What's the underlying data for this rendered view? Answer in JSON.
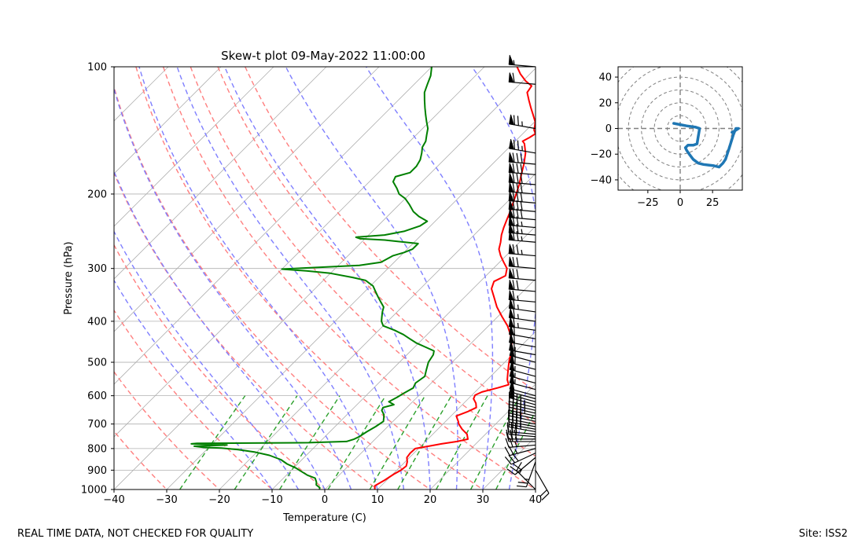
{
  "chart_data": [
    {
      "type": "line",
      "subtype": "skew-t log-p diagram",
      "title": "Skew-t plot 09-May-2022 11:00:00",
      "xlabel": "Temperature (C)",
      "ylabel": "Pressure (hPa)",
      "xlim": [
        -40,
        40
      ],
      "ylim": [
        1000,
        100
      ],
      "y_scale": "log",
      "x_ticks": [
        -40,
        -30,
        -20,
        -10,
        0,
        10,
        20,
        30,
        40
      ],
      "y_ticks": [
        100,
        200,
        300,
        400,
        500,
        600,
        700,
        800,
        900,
        1000
      ],
      "grid": true,
      "skew_isotherm_interval_C": 10,
      "dry_adiabats_C": [
        -30,
        -20,
        -10,
        0,
        10,
        20,
        30,
        40,
        50,
        60,
        70
      ],
      "moist_adiabats_C": [
        -10,
        -5,
        0,
        5,
        10,
        15,
        20,
        25,
        30,
        35
      ],
      "mixing_ratio_lines": [
        0.0004,
        0.001,
        0.002,
        0.004,
        0.007,
        0.01,
        0.016,
        0.024,
        0.032
      ],
      "colors": {
        "temperature": "#ff0000",
        "dewpoint": "#008000",
        "dry_adiabat": "#ff7f7f",
        "moist_adiabat": "#7f7fff",
        "mixing_ratio": "#2ca02c",
        "isotherm": "#b0b0b0",
        "pressure_grid": "#b0b0b0"
      },
      "series": [
        {
          "name": "Temperature",
          "color": "#ff0000",
          "points": [
            [
              9.5,
              1000
            ],
            [
              8.8,
              980
            ],
            [
              9.6,
              950
            ],
            [
              10.2,
              920
            ],
            [
              10.8,
              900
            ],
            [
              11.0,
              880
            ],
            [
              10.4,
              860
            ],
            [
              9.5,
              840
            ],
            [
              9.3,
              820
            ],
            [
              9.4,
              800
            ],
            [
              11.5,
              790
            ],
            [
              13.5,
              780
            ],
            [
              16.0,
              770
            ],
            [
              17.6,
              760
            ],
            [
              16.5,
              740
            ],
            [
              14.6,
              720
            ],
            [
              13.0,
              700
            ],
            [
              12.4,
              690
            ],
            [
              11.7,
              680
            ],
            [
              11.0,
              670
            ],
            [
              12.3,
              655
            ],
            [
              13.2,
              640
            ],
            [
              12.3,
              625
            ],
            [
              11.0,
              610
            ],
            [
              10.6,
              598
            ],
            [
              11.3,
              588
            ],
            [
              13.5,
              575
            ],
            [
              15.0,
              565
            ],
            [
              13.8,
              550
            ],
            [
              12.6,
              530
            ],
            [
              11.4,
              510
            ],
            [
              10.2,
              490
            ],
            [
              9.2,
              470
            ],
            [
              7.6,
              450
            ],
            [
              5.8,
              430
            ],
            [
              3.6,
              410
            ],
            [
              0.8,
              390
            ],
            [
              -2.0,
              370
            ],
            [
              -4.5,
              350
            ],
            [
              -6.5,
              335
            ],
            [
              -7.4,
              322
            ],
            [
              -6.3,
              312
            ],
            [
              -7.4,
              300
            ],
            [
              -9.2,
              290
            ],
            [
              -11.0,
              280
            ],
            [
              -12.6,
              270
            ],
            [
              -13.6,
              260
            ],
            [
              -14.8,
              250
            ],
            [
              -15.8,
              240
            ],
            [
              -16.7,
              230
            ],
            [
              -17.6,
              220
            ],
            [
              -18.7,
              210
            ],
            [
              -19.8,
              200
            ],
            [
              -21.0,
              190
            ],
            [
              -22.5,
              180
            ],
            [
              -24.0,
              170
            ],
            [
              -25.8,
              160
            ],
            [
              -27.8,
              152
            ],
            [
              -28.6,
              150
            ],
            [
              -28.0,
              147
            ],
            [
              -27.6,
              144
            ],
            [
              -28.6,
              141
            ],
            [
              -29.2,
              138
            ],
            [
              -29.9,
              135
            ],
            [
              -31.6,
              130
            ],
            [
              -33.4,
              125
            ],
            [
              -35.2,
              120
            ],
            [
              -37.0,
              115
            ],
            [
              -37.4,
              111
            ],
            [
              -39.5,
              108
            ],
            [
              -41.8,
              104
            ],
            [
              -43.8,
              100
            ]
          ]
        },
        {
          "name": "Dewpoint",
          "color": "#008000",
          "points": [
            [
              -1.0,
              1000
            ],
            [
              -1.3,
              990
            ],
            [
              -2.5,
              975
            ],
            [
              -3.0,
              960
            ],
            [
              -4.0,
              940
            ],
            [
              -6.0,
              925
            ],
            [
              -8.0,
              905
            ],
            [
              -9.5,
              890
            ],
            [
              -12.0,
              870
            ],
            [
              -14.0,
              850
            ],
            [
              -17.0,
              830
            ],
            [
              -20.5,
              815
            ],
            [
              -24.0,
              805
            ],
            [
              -27.5,
              798
            ],
            [
              -31.0,
              795
            ],
            [
              -33.0,
              790
            ],
            [
              -27.0,
              785
            ],
            [
              -30.0,
              782
            ],
            [
              -34.0,
              780
            ],
            [
              -33.0,
              778
            ],
            [
              -12.0,
              775
            ],
            [
              -5.0,
              770
            ],
            [
              -4.0,
              760
            ],
            [
              -3.5,
              750
            ],
            [
              -3.0,
              730
            ],
            [
              -2.3,
              710
            ],
            [
              -1.8,
              690
            ],
            [
              -2.5,
              675
            ],
            [
              -3.0,
              665
            ],
            [
              -4.2,
              650
            ],
            [
              -4.5,
              640
            ],
            [
              -3.0,
              630
            ],
            [
              -4.5,
              620
            ],
            [
              -3.8,
              605
            ],
            [
              -3.2,
              590
            ],
            [
              -2.5,
              575
            ],
            [
              -3.0,
              560
            ],
            [
              -2.5,
              540
            ],
            [
              -3.5,
              520
            ],
            [
              -4.5,
              500
            ],
            [
              -5.0,
              480
            ],
            [
              -5.6,
              470
            ],
            [
              -8.0,
              460
            ],
            [
              -10.5,
              450
            ],
            [
              -12.5,
              440
            ],
            [
              -14.5,
              430
            ],
            [
              -17.0,
              420
            ],
            [
              -20.0,
              410
            ],
            [
              -21.2,
              400
            ],
            [
              -22.0,
              390
            ],
            [
              -22.8,
              380
            ],
            [
              -23.5,
              370
            ],
            [
              -25.0,
              360
            ],
            [
              -26.5,
              350
            ],
            [
              -28.0,
              340
            ],
            [
              -29.5,
              330
            ],
            [
              -32.0,
              320
            ],
            [
              -35.0,
              315
            ],
            [
              -40.0,
              308
            ],
            [
              -45.0,
              304
            ],
            [
              -50.0,
              301
            ],
            [
              -43.0,
              298
            ],
            [
              -36.0,
              295
            ],
            [
              -32.5,
              290
            ],
            [
              -31.5,
              280
            ],
            [
              -30.0,
              275
            ],
            [
              -29.0,
              270
            ],
            [
              -29.0,
              262
            ],
            [
              -36.0,
              257
            ],
            [
              -41.0,
              255
            ],
            [
              -42.0,
              253
            ],
            [
              -37.0,
              250
            ],
            [
              -34.0,
              245
            ],
            [
              -32.0,
              238
            ],
            [
              -31.5,
              232
            ],
            [
              -34.0,
              226
            ],
            [
              -36.0,
              220
            ],
            [
              -38.0,
              212
            ],
            [
              -40.0,
              205
            ],
            [
              -42.0,
              200
            ],
            [
              -43.5,
              194
            ],
            [
              -45.5,
              187
            ],
            [
              -46.0,
              182
            ],
            [
              -44.0,
              178
            ],
            [
              -44.0,
              172
            ],
            [
              -44.5,
              166
            ],
            [
              -45.5,
              160
            ],
            [
              -46.5,
              155
            ],
            [
              -47.0,
              150
            ],
            [
              -48.0,
              145
            ],
            [
              -49.0,
              140
            ],
            [
              -50.5,
              135
            ],
            [
              -52.0,
              130
            ],
            [
              -53.5,
              125
            ],
            [
              -55.0,
              120
            ],
            [
              -56.5,
              115
            ],
            [
              -57.5,
              110
            ],
            [
              -58.5,
              105
            ],
            [
              -60.0,
              100
            ]
          ]
        }
      ],
      "wind_barbs": {
        "pressures": [
          1000,
          900,
          860,
          840,
          820,
          800,
          785,
          770,
          760,
          750,
          740,
          730,
          720,
          710,
          700,
          690,
          680,
          670,
          660,
          650,
          640,
          630,
          620,
          610,
          600,
          580,
          560,
          540,
          520,
          500,
          480,
          460,
          440,
          420,
          400,
          380,
          360,
          340,
          320,
          300,
          280,
          260,
          250,
          240,
          230,
          220,
          210,
          200,
          190,
          180,
          170,
          160,
          140,
          110,
          100
        ],
        "direction_deg": [
          315,
          150,
          200,
          230,
          245,
          255,
          265,
          270,
          270,
          275,
          275,
          280,
          280,
          280,
          280,
          282,
          282,
          282,
          283,
          283,
          283,
          285,
          285,
          285,
          285,
          285,
          285,
          285,
          285,
          285,
          280,
          280,
          280,
          278,
          278,
          278,
          275,
          275,
          275,
          275,
          275,
          275,
          275,
          275,
          275,
          275,
          275,
          275,
          275,
          275,
          275,
          280,
          280,
          275,
          275
        ],
        "speed": [
          15,
          20,
          25,
          30,
          30,
          25,
          25,
          25,
          30,
          30,
          30,
          35,
          35,
          40,
          40,
          40,
          40,
          45,
          45,
          45,
          45,
          50,
          50,
          50,
          50,
          55,
          55,
          55,
          60,
          60,
          60,
          60,
          60,
          65,
          65,
          65,
          65,
          70,
          70,
          70,
          75,
          75,
          75,
          75,
          80,
          80,
          80,
          80,
          80,
          80,
          80,
          75,
          75,
          60,
          55
        ]
      }
    },
    {
      "type": "line",
      "subtype": "hodograph",
      "xlim": [
        -48,
        48
      ],
      "ylim": [
        -48,
        48
      ],
      "x_ticks": [
        -25,
        0,
        25
      ],
      "y_ticks": [
        -40,
        -20,
        0,
        20,
        40
      ],
      "range_rings": [
        10,
        20,
        30,
        40,
        50,
        60
      ],
      "color": "#1f77b4",
      "u": [
        -5,
        0,
        5,
        12,
        15,
        14,
        13,
        10,
        6,
        4,
        5,
        7,
        10,
        14,
        18,
        22,
        26,
        30,
        33,
        35,
        38,
        41,
        43,
        45,
        42,
        40
      ],
      "v": [
        4,
        3,
        2,
        1,
        0,
        -6,
        -12,
        -13,
        -13,
        -15,
        -17,
        -20,
        -24,
        -27,
        -28,
        -28.5,
        -29,
        -30,
        -27,
        -24,
        -15,
        -5,
        0,
        0,
        -2,
        -3
      ]
    }
  ],
  "footer": {
    "left": "REAL TIME DATA, NOT CHECKED FOR QUALITY",
    "right": "Site: ISS2"
  }
}
